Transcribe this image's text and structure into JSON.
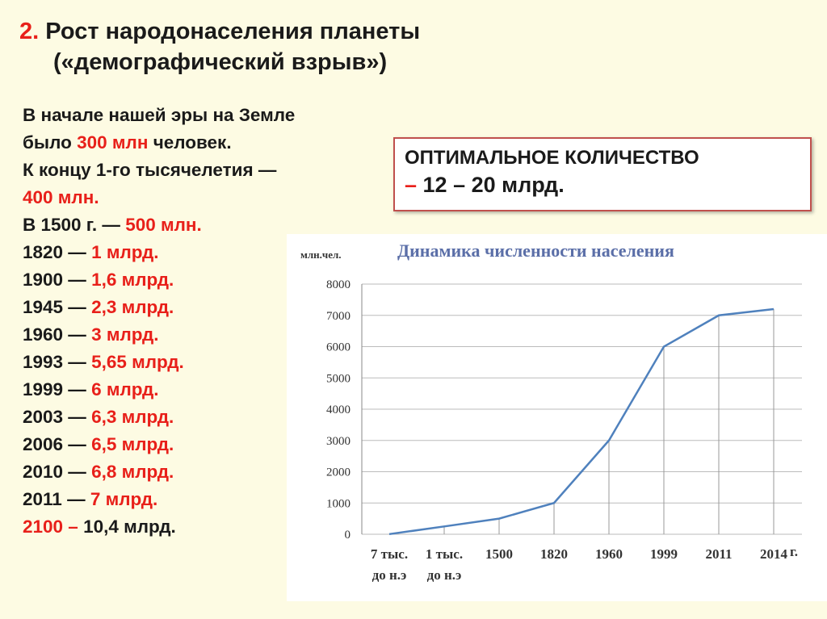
{
  "header": {
    "number": "2.",
    "title_line1": "Рост народонаселения планеты",
    "title_line2": "(«демографический взрыв»)"
  },
  "left": {
    "paragraphs": [
      [
        {
          "text": "В начале нашей эры на Земле было ",
          "red": false
        },
        {
          "text": "300 млн",
          "red": true
        },
        {
          "text": " человек.",
          "red": false
        }
      ],
      [
        {
          "text": "К концу 1-го тысячелетия — ",
          "red": false
        },
        {
          "text": "400 млн.",
          "red": true
        }
      ],
      [
        {
          "text": "В 1500 г. — ",
          "red": false
        },
        {
          "text": "500 млн.",
          "red": true
        }
      ],
      [
        {
          "text": "1820 — ",
          "red": false
        },
        {
          "text": "1 млрд.",
          "red": true
        }
      ],
      [
        {
          "text": "1900 — ",
          "red": false
        },
        {
          "text": "1,6 млрд.",
          "red": true
        }
      ],
      [
        {
          "text": "1945 — ",
          "red": false
        },
        {
          "text": "2,3 млрд.",
          "red": true
        }
      ],
      [
        {
          "text": "1960 — ",
          "red": false
        },
        {
          "text": "3 млрд.",
          "red": true
        }
      ],
      [
        {
          "text": "1993 — ",
          "red": false
        },
        {
          "text": "5,65 млрд.",
          "red": true
        }
      ],
      [
        {
          "text": "1999 — ",
          "red": false
        },
        {
          "text": "6 млрд.",
          "red": true
        }
      ],
      [
        {
          "text": "2003 — ",
          "red": false
        },
        {
          "text": "6,3 млрд.",
          "red": true
        }
      ],
      [
        {
          "text": "2006 — ",
          "red": false
        },
        {
          "text": "6,5 млрд.",
          "red": true
        }
      ],
      [
        {
          "text": "2010 — ",
          "red": false
        },
        {
          "text": "6,8 млрд.",
          "red": true
        }
      ],
      [
        {
          "text": "2011 — ",
          "red": false
        },
        {
          "text": "7 млрд.",
          "red": true
        }
      ],
      [
        {
          "text": "2100 – ",
          "red": true
        },
        {
          "text": "10,4 млрд.",
          "red": false
        }
      ]
    ]
  },
  "box": {
    "line1": [
      {
        "text": "ОПТИМАЛЬНОЕ КОЛИЧЕСТВО",
        "red": false
      }
    ],
    "line2": [
      {
        "text": "– ",
        "red": true
      },
      {
        "text": "12 – 20 млрд.",
        "red": false
      }
    ]
  },
  "chart_data": {
    "type": "line",
    "title": "Динамика численности населения",
    "ylabel": "млн.чел.",
    "xlabel": "г.",
    "categories": [
      "7 тыс.\nдо н.э",
      "1 тыс.\nдо н.э",
      "1500",
      "1820",
      "1960",
      "1999",
      "2011",
      "2014"
    ],
    "values": [
      5,
      250,
      500,
      1000,
      3000,
      6000,
      7000,
      7200
    ],
    "color": "#4f81bd",
    "ylim": [
      0,
      8000
    ],
    "yticks": [
      0,
      1000,
      2000,
      3000,
      4000,
      5000,
      6000,
      7000,
      8000
    ],
    "grid": true,
    "drop_lines": true
  }
}
